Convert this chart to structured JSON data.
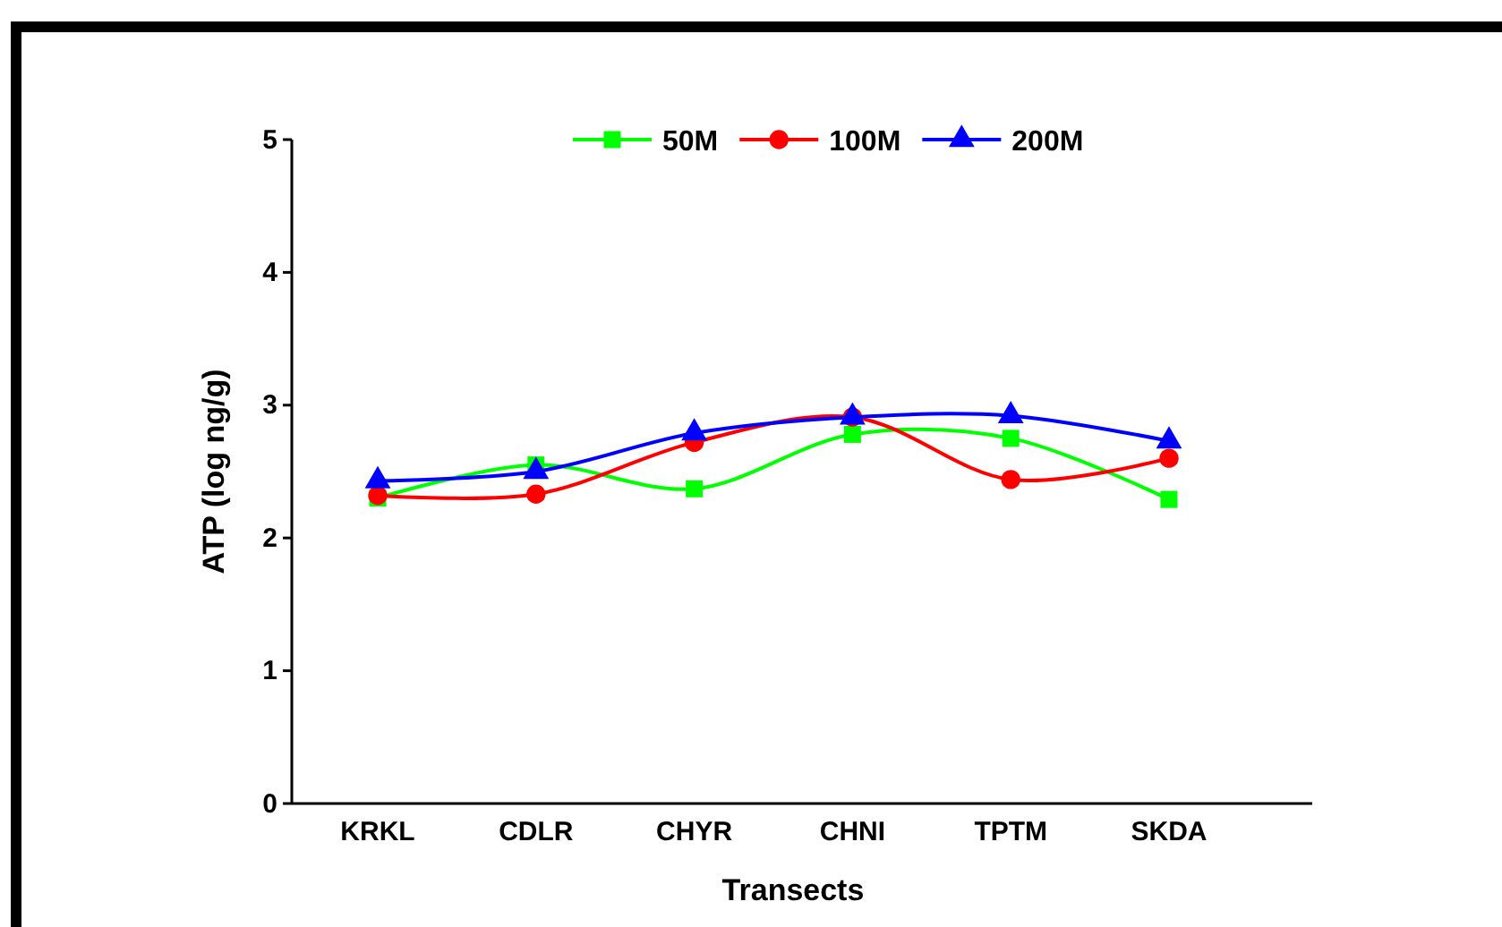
{
  "chart_data": {
    "type": "line",
    "xlabel": "Transects",
    "ylabel": "ATP (log ng/g)",
    "categories": [
      "KRKL",
      "CDLR",
      "CHYR",
      "CHNI",
      "TPTM",
      "SKDA"
    ],
    "series": [
      {
        "name": "50M",
        "color": "#00ff00",
        "marker": "square",
        "values": [
          2.3,
          2.55,
          2.37,
          2.78,
          2.75,
          2.29
        ]
      },
      {
        "name": "100M",
        "color": "#ff0000",
        "marker": "circle",
        "values": [
          2.32,
          2.33,
          2.72,
          2.91,
          2.44,
          2.6
        ]
      },
      {
        "name": "200M",
        "color": "#0000ff",
        "marker": "triangle",
        "values": [
          2.43,
          2.5,
          2.79,
          2.91,
          2.92,
          2.73
        ]
      }
    ],
    "ylim": [
      0,
      5
    ],
    "yticks": [
      0,
      1,
      2,
      3,
      4,
      5
    ],
    "grid": false,
    "legend": "top"
  }
}
